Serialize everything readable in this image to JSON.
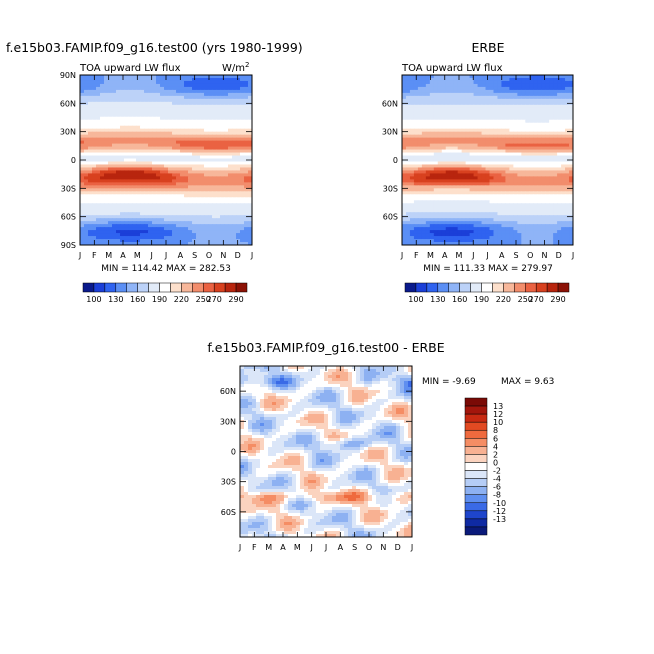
{
  "chart_data": [
    {
      "type": "heatmap",
      "id": "model",
      "title": "f.e15b03.FAMIP.f09_g16.test00 (yrs 1980-1999)",
      "left_subtitle": "TOA upward LW flux",
      "right_subtitle": "W/m",
      "units_sup": "2",
      "x_ticks": [
        "J",
        "F",
        "M",
        "A",
        "M",
        "J",
        "J",
        "A",
        "S",
        "O",
        "N",
        "D",
        "J"
      ],
      "y_ticks": [
        "90N",
        "60N",
        "30N",
        "0",
        "30S",
        "60S",
        "90S"
      ],
      "y_values": [
        90,
        60,
        30,
        0,
        -30,
        -60,
        -90
      ],
      "stats": "MIN = 114.42 MAX = 282.53",
      "min": 114.42,
      "max": 282.53
    },
    {
      "type": "heatmap",
      "id": "obs",
      "title": "ERBE",
      "left_subtitle": "TOA upward LW flux",
      "x_ticks": [
        "J",
        "F",
        "M",
        "A",
        "M",
        "J",
        "J",
        "A",
        "S",
        "O",
        "N",
        "D",
        "J"
      ],
      "y_ticks": [
        "60N",
        "30N",
        "0",
        "30S",
        "60S"
      ],
      "y_values": [
        60,
        30,
        0,
        -30,
        -60
      ],
      "stats": "MIN = 111.33 MAX = 279.97",
      "min": 111.33,
      "max": 279.97
    },
    {
      "type": "heatmap",
      "id": "diff",
      "title": "f.e15b03.FAMIP.f09_g16.test00 - ERBE",
      "x_ticks": [
        "J",
        "F",
        "M",
        "A",
        "M",
        "J",
        "J",
        "A",
        "S",
        "O",
        "N",
        "D",
        "J"
      ],
      "y_ticks": [
        "60N",
        "30N",
        "0",
        "30S",
        "60S"
      ],
      "y_values": [
        60,
        30,
        0,
        -30,
        -60
      ],
      "stats_min": "MIN = -9.69",
      "stats_max": "MAX = 9.63",
      "min": -9.69,
      "max": 9.63
    }
  ],
  "colorbar_main": {
    "labels": [
      "100",
      "130",
      "160",
      "190",
      "220",
      "250",
      "270",
      "290"
    ],
    "colors": [
      "#0a1a8c",
      "#1b3fd8",
      "#2f63f0",
      "#5b8ff5",
      "#8fb4f7",
      "#bcd2f8",
      "#e2ebf8",
      "#ffffff",
      "#fde0cc",
      "#f7b79a",
      "#f28d6c",
      "#ea6242",
      "#d8411f",
      "#b8250e",
      "#8c1206"
    ]
  },
  "colorbar_diff": {
    "labels": [
      "13",
      "12",
      "10",
      "8",
      "6",
      "4",
      "2",
      "0",
      "-2",
      "-4",
      "-6",
      "-8",
      "-10",
      "-12",
      "-13"
    ],
    "colors": [
      "#7a0a06",
      "#a3160c",
      "#c82a12",
      "#e24a22",
      "#ef6a3e",
      "#f58d64",
      "#f8b192",
      "#fbd3bf",
      "#ffffff",
      "#dbe6f8",
      "#b5cdf6",
      "#8db1f2",
      "#5f8ff0",
      "#3a6ae6",
      "#1e45cc",
      "#0f2aa3",
      "#0a1a7a"
    ]
  }
}
